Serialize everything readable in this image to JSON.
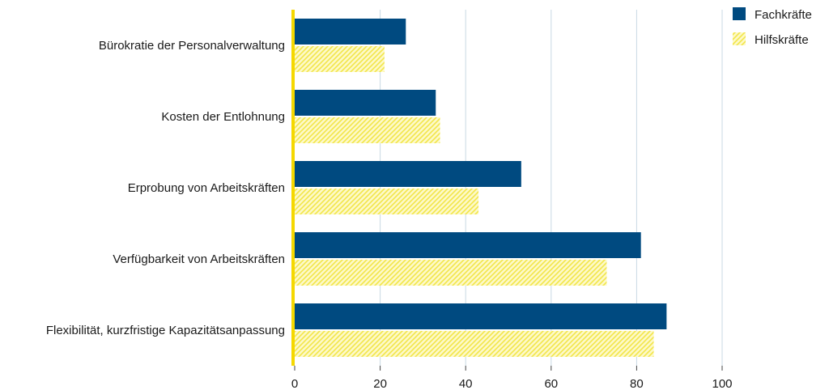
{
  "chart_data": {
    "type": "bar",
    "orientation": "horizontal",
    "categories": [
      "Bürokratie der Personalverwaltung",
      "Kosten der Entlohnung",
      "Erprobung von Arbeitskräften",
      "Verfügbarkeit von Arbeitskräften",
      "Flexibilität, kurzfristige Kapazitätsanpassung"
    ],
    "series": [
      {
        "name": "Fachkräfte",
        "values": [
          26,
          33,
          53,
          81,
          87
        ],
        "color": "#004a80",
        "fill": "solid"
      },
      {
        "name": "Hilfskräfte",
        "values": [
          21,
          34,
          43,
          73,
          84
        ],
        "color": "#f2e64a",
        "fill": "hatched"
      }
    ],
    "xlim": [
      0,
      100
    ],
    "xticks": [
      "0",
      "20",
      "40",
      "60",
      "80",
      "100"
    ],
    "xtick_values": [
      0,
      20,
      40,
      60,
      80,
      100
    ],
    "grid": "vertical",
    "legend_position": "top-right",
    "axis_color": "#f5d800",
    "grid_color": "#c9d9e3"
  }
}
